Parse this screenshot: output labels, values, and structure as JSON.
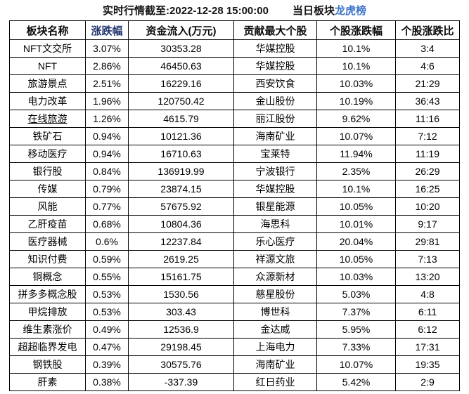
{
  "header": {
    "title": "实时行情截至:2022-12-28 15:00:00",
    "board_label": "当日板块",
    "board_link": "龙虎榜"
  },
  "colors": {
    "link_blue": "#3d74c6",
    "name_blue": "#336b9e",
    "header_navy": "#22356e",
    "border": "#000000",
    "background": "#ffffff"
  },
  "chart_data": {
    "type": "table",
    "title": "当日板块龙虎榜 (实时行情截至:2022-12-28 15:00:00)",
    "columns": [
      "板块名称",
      "涨跌幅",
      "资金流入(万元)",
      "贡献最大个股",
      "个股涨跌幅",
      "个股涨跌比"
    ],
    "rows": [
      {
        "sector": "NFT文交所",
        "underline": false,
        "change": "3.07%",
        "inflow": "30353.28",
        "stock": "华媒控股",
        "stock_change": "10.1%",
        "ratio": "3:4"
      },
      {
        "sector": "NFT",
        "underline": false,
        "change": "2.86%",
        "inflow": "46450.63",
        "stock": "华媒控股",
        "stock_change": "10.1%",
        "ratio": "4:6"
      },
      {
        "sector": "旅游景点",
        "underline": false,
        "change": "2.51%",
        "inflow": "16229.16",
        "stock": "西安饮食",
        "stock_change": "10.03%",
        "ratio": "21:29"
      },
      {
        "sector": "电力改革",
        "underline": false,
        "change": "1.96%",
        "inflow": "120750.42",
        "stock": "金山股份",
        "stock_change": "10.19%",
        "ratio": "36:43"
      },
      {
        "sector": "在线旅游",
        "underline": true,
        "change": "1.26%",
        "inflow": "4615.79",
        "stock": "丽江股份",
        "stock_change": "9.62%",
        "ratio": "11:16"
      },
      {
        "sector": "铁矿石",
        "underline": false,
        "change": "0.94%",
        "inflow": "10121.36",
        "stock": "海南矿业",
        "stock_change": "10.07%",
        "ratio": "7:12"
      },
      {
        "sector": "移动医疗",
        "underline": false,
        "change": "0.94%",
        "inflow": "16710.63",
        "stock": "宝莱特",
        "stock_change": "11.94%",
        "ratio": "11:19"
      },
      {
        "sector": "银行股",
        "underline": false,
        "change": "0.84%",
        "inflow": "136919.99",
        "stock": "宁波银行",
        "stock_change": "2.35%",
        "ratio": "26:29"
      },
      {
        "sector": "传媒",
        "underline": false,
        "change": "0.79%",
        "inflow": "23874.15",
        "stock": "华媒控股",
        "stock_change": "10.1%",
        "ratio": "16:25"
      },
      {
        "sector": "风能",
        "underline": false,
        "change": "0.77%",
        "inflow": "57675.92",
        "stock": "银星能源",
        "stock_change": "10.05%",
        "ratio": "10:20"
      },
      {
        "sector": "乙肝疫苗",
        "underline": false,
        "change": "0.68%",
        "inflow": "10804.36",
        "stock": "海思科",
        "stock_change": "10.01%",
        "ratio": "9:17"
      },
      {
        "sector": "医疗器械",
        "underline": false,
        "change": "0.6%",
        "inflow": "12237.84",
        "stock": "乐心医疗",
        "stock_change": "20.04%",
        "ratio": "29:81"
      },
      {
        "sector": "知识付费",
        "underline": false,
        "change": "0.59%",
        "inflow": "2619.25",
        "stock": "祥源文旅",
        "stock_change": "10.05%",
        "ratio": "7:13"
      },
      {
        "sector": "铜概念",
        "underline": false,
        "change": "0.55%",
        "inflow": "15161.75",
        "stock": "众源新材",
        "stock_change": "10.03%",
        "ratio": "13:20"
      },
      {
        "sector": "拼多多概念股",
        "underline": false,
        "change": "0.53%",
        "inflow": "1530.56",
        "stock": "慈星股份",
        "stock_change": "5.03%",
        "ratio": "4:8"
      },
      {
        "sector": "甲烷排放",
        "underline": false,
        "change": "0.53%",
        "inflow": "303.43",
        "stock": "博世科",
        "stock_change": "7.37%",
        "ratio": "6:11"
      },
      {
        "sector": "维生素涨价",
        "underline": false,
        "change": "0.49%",
        "inflow": "12536.9",
        "stock": "金达威",
        "stock_change": "5.95%",
        "ratio": "6:12"
      },
      {
        "sector": "超超临界发电",
        "underline": false,
        "change": "0.47%",
        "inflow": "29198.45",
        "stock": "上海电力",
        "stock_change": "7.33%",
        "ratio": "17:31"
      },
      {
        "sector": "钢铁股",
        "underline": false,
        "change": "0.39%",
        "inflow": "30575.76",
        "stock": "海南矿业",
        "stock_change": "10.07%",
        "ratio": "19:35"
      },
      {
        "sector": "肝素",
        "underline": false,
        "change": "0.38%",
        "inflow": "-337.39",
        "stock": "红日药业",
        "stock_change": "5.42%",
        "ratio": "2:9"
      }
    ]
  }
}
